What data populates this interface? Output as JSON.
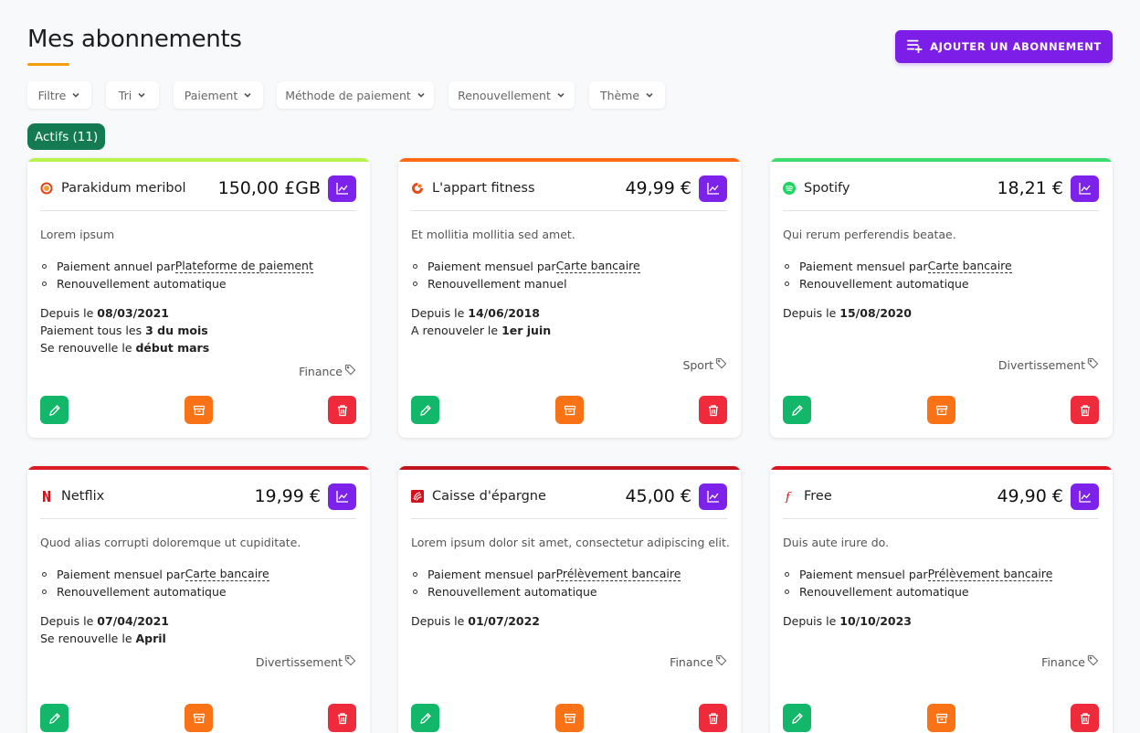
{
  "header": {
    "title": "Mes abonnements",
    "add_button_label": "AJOUTER UN ABONNEMENT"
  },
  "filters": [
    "Filtre",
    "Tri",
    "Paiement",
    "Méthode de paiement",
    "Renouvellement",
    "Thème"
  ],
  "status_badge": "Actifs (11)",
  "colors": {
    "accent": "#7c1ee8",
    "badge": "#137a52",
    "edit": "#12b76a",
    "archive": "#f97316",
    "delete": "#ef2b3b",
    "underline": "#f59e0b"
  },
  "cards": [
    {
      "name": "Parakidum meribol",
      "price": "150,00 £GB",
      "bar_color": "#b9f24a",
      "logo": "parakidum-logo",
      "description": "Lorem ipsum",
      "payment_prefix": "Paiement annuel par ",
      "payment_method": "Plateforme de paiement",
      "renewal": "Renouvellement automatique",
      "lines": [
        {
          "label": "Depuis le ",
          "value": "08/03/2021"
        },
        {
          "label": "Paiement tous les ",
          "value": "3 du mois"
        },
        {
          "label": "Se renouvelle le ",
          "value": "début mars"
        }
      ],
      "tag": "Finance"
    },
    {
      "name": "L'appart fitness",
      "price": "49,99 €",
      "bar_color": "#ff6a13",
      "logo": "appart-fitness-logo",
      "description": "Et mollitia mollitia sed amet.",
      "payment_prefix": "Paiement mensuel par ",
      "payment_method": "Carte bancaire",
      "renewal": "Renouvellement manuel",
      "lines": [
        {
          "label": "Depuis le ",
          "value": "14/06/2018"
        },
        {
          "label": "A renouveler le ",
          "value": "1er juin"
        }
      ],
      "tag": "Sport"
    },
    {
      "name": "Spotify",
      "price": "18,21 €",
      "bar_color": "#3ddc6e",
      "logo": "spotify-logo",
      "description": "Qui rerum perferendis beatae.",
      "payment_prefix": "Paiement mensuel par ",
      "payment_method": "Carte bancaire",
      "renewal": "Renouvellement automatique",
      "lines": [
        {
          "label": "Depuis le ",
          "value": "15/08/2020"
        }
      ],
      "tag": "Divertissement"
    },
    {
      "name": "Netflix",
      "price": "19,99 €",
      "bar_color": "#dc1c24",
      "logo": "netflix-logo",
      "description": "Quod alias corrupti doloremque ut cupiditate.",
      "payment_prefix": "Paiement mensuel par ",
      "payment_method": "Carte bancaire",
      "renewal": "Renouvellement automatique",
      "lines": [
        {
          "label": "Depuis le ",
          "value": "07/04/2021"
        },
        {
          "label": "Se renouvelle le ",
          "value": "April"
        }
      ],
      "tag": "Divertissement"
    },
    {
      "name": "Caisse d'épargne",
      "price": "45,00 €",
      "bar_color": "#c0141e",
      "logo": "caisse-epargne-logo",
      "description": "Lorem ipsum dolor sit amet, consectetur adipiscing elit.",
      "payment_prefix": "Paiement mensuel par ",
      "payment_method": "Prélèvement bancaire",
      "renewal": "Renouvellement automatique",
      "lines": [
        {
          "label": "Depuis le ",
          "value": "01/07/2022"
        }
      ],
      "tag": "Finance"
    },
    {
      "name": "Free",
      "price": "49,90 €",
      "bar_color": "#e0141e",
      "logo": "free-logo",
      "description": "Duis aute irure do.",
      "payment_prefix": "Paiement mensuel par ",
      "payment_method": "Prélèvement bancaire",
      "renewal": "Renouvellement automatique",
      "lines": [
        {
          "label": "Depuis le ",
          "value": "10/10/2023"
        }
      ],
      "tag": "Finance"
    }
  ]
}
